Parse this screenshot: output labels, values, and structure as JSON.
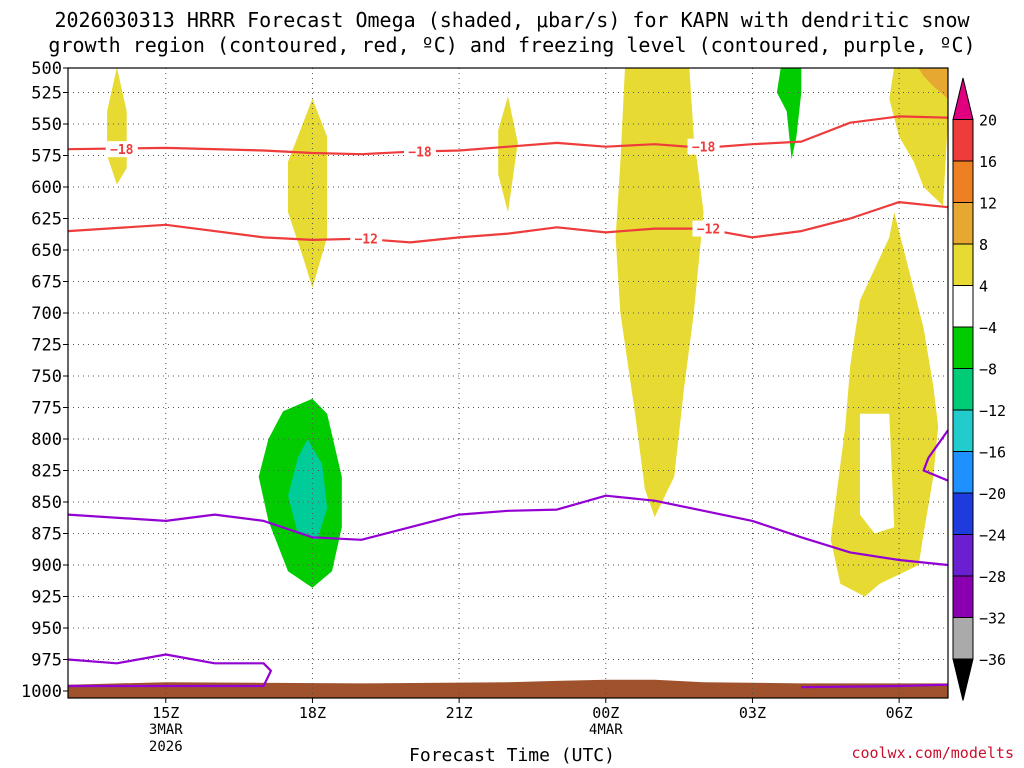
{
  "chart_data": {
    "type": "contour",
    "title_line1": "2026030313 HRRR Forecast Omega (shaded, μbar/s) for KAPN with dendritic snow",
    "title_line2": "growth region (contoured, red, ºC) and freezing level (contoured, purple, ºC)",
    "xlabel": "Forecast Time (UTC)",
    "ylabel": "",
    "credit": "coolwx.com/modelts",
    "x_hours_range": [
      13,
      31
    ],
    "y_range_mb": [
      500,
      1000
    ],
    "yticks": [
      500,
      525,
      550,
      575,
      600,
      625,
      650,
      675,
      700,
      725,
      750,
      775,
      800,
      825,
      850,
      875,
      900,
      925,
      950,
      975,
      1000
    ],
    "xticks": [
      {
        "hour": 15,
        "label": "15Z",
        "sub1": "3MAR",
        "sub2": "2026"
      },
      {
        "hour": 18,
        "label": "18Z",
        "sub1": "",
        "sub2": ""
      },
      {
        "hour": 21,
        "label": "21Z",
        "sub1": "",
        "sub2": ""
      },
      {
        "hour": 24,
        "label": "00Z",
        "sub1": "4MAR",
        "sub2": ""
      },
      {
        "hour": 27,
        "label": "03Z",
        "sub1": "",
        "sub2": ""
      },
      {
        "hour": 30,
        "label": "06Z",
        "sub1": "",
        "sub2": ""
      }
    ],
    "colorbar": {
      "levels": [
        {
          "label": "",
          "color": "#e0007f"
        },
        {
          "label": "20",
          "color": "#ee3b3b"
        },
        {
          "label": "16",
          "color": "#ee7f22"
        },
        {
          "label": "12",
          "color": "#e6a830"
        },
        {
          "label": "8",
          "color": "#e6da33"
        },
        {
          "label": "4",
          "color": "#ffffff"
        },
        {
          "label": "−4",
          "color": "#00cc00"
        },
        {
          "label": "−8",
          "color": "#00cc77"
        },
        {
          "label": "−12",
          "color": "#22cccc"
        },
        {
          "label": "−16",
          "color": "#1e90ff"
        },
        {
          "label": "−20",
          "color": "#1e3cdd"
        },
        {
          "label": "−24",
          "color": "#6a1fd0"
        },
        {
          "label": "−28",
          "color": "#8a00b0"
        },
        {
          "label": "−32",
          "color": "#aaaaaa"
        },
        {
          "label": "−36",
          "color": "#000000"
        }
      ]
    },
    "omega_regions": [
      {
        "name": "yellow-15z",
        "color": "#e6da33",
        "points": [
          [
            14.0,
            505
          ],
          [
            14.2,
            540
          ],
          [
            14.2,
            585
          ],
          [
            14.0,
            598
          ],
          [
            13.8,
            575
          ],
          [
            13.8,
            540
          ]
        ]
      },
      {
        "name": "yellow-18z",
        "color": "#e6da33",
        "points": [
          [
            18.0,
            530
          ],
          [
            18.3,
            560
          ],
          [
            18.3,
            640
          ],
          [
            18.0,
            680
          ],
          [
            17.8,
            655
          ],
          [
            17.5,
            620
          ],
          [
            17.5,
            580
          ],
          [
            17.8,
            550
          ]
        ]
      },
      {
        "name": "yellow-22z",
        "color": "#e6da33",
        "points": [
          [
            22.0,
            528
          ],
          [
            22.2,
            565
          ],
          [
            22.0,
            620
          ],
          [
            21.8,
            590
          ],
          [
            21.8,
            555
          ]
        ]
      },
      {
        "name": "yellow-01z",
        "color": "#e6da33",
        "points": [
          [
            24.4,
            500
          ],
          [
            25.7,
            500
          ],
          [
            25.8,
            560
          ],
          [
            26.0,
            620
          ],
          [
            25.8,
            700
          ],
          [
            25.6,
            760
          ],
          [
            25.4,
            830
          ],
          [
            25.0,
            862
          ],
          [
            24.8,
            840
          ],
          [
            24.6,
            780
          ],
          [
            24.3,
            700
          ],
          [
            24.2,
            640
          ],
          [
            24.3,
            580
          ]
        ]
      },
      {
        "name": "yellow-05z",
        "color": "#e6da33",
        "points": [
          [
            29.9,
            505
          ],
          [
            29.8,
            530
          ],
          [
            30.0,
            560
          ],
          [
            30.3,
            580
          ],
          [
            30.5,
            600
          ],
          [
            30.9,
            615
          ],
          [
            31.0,
            545
          ],
          [
            31.0,
            500
          ],
          [
            30.6,
            500
          ]
        ]
      },
      {
        "name": "yellow-06z-low",
        "color": "#e6da33",
        "points": [
          [
            29.9,
            620
          ],
          [
            30.5,
            712
          ],
          [
            30.7,
            758
          ],
          [
            30.8,
            790
          ],
          [
            30.7,
            830
          ],
          [
            30.5,
            875
          ],
          [
            30.4,
            900
          ],
          [
            29.6,
            915
          ],
          [
            29.3,
            925
          ],
          [
            28.8,
            915
          ],
          [
            28.6,
            880
          ],
          [
            28.9,
            790
          ],
          [
            29.0,
            742
          ],
          [
            29.2,
            690
          ],
          [
            29.8,
            640
          ]
        ]
      },
      {
        "name": "orange-top",
        "color": "#e6a830",
        "points": [
          [
            30.3,
            500
          ],
          [
            31.0,
            500
          ],
          [
            31.0,
            530
          ],
          [
            30.7,
            520
          ],
          [
            30.5,
            512
          ]
        ]
      },
      {
        "name": "green-04z",
        "color": "#00cc00",
        "points": [
          [
            27.6,
            500
          ],
          [
            28.0,
            500
          ],
          [
            28.0,
            525
          ],
          [
            27.9,
            560
          ],
          [
            27.8,
            578
          ],
          [
            27.7,
            540
          ],
          [
            27.5,
            525
          ]
        ]
      },
      {
        "name": "green-18z",
        "color": "#00cc00",
        "points": [
          [
            18.0,
            768
          ],
          [
            18.3,
            780
          ],
          [
            18.6,
            830
          ],
          [
            18.6,
            870
          ],
          [
            18.4,
            905
          ],
          [
            18.0,
            918
          ],
          [
            17.5,
            905
          ],
          [
            17.1,
            865
          ],
          [
            16.9,
            830
          ],
          [
            17.1,
            800
          ],
          [
            17.4,
            778
          ]
        ]
      },
      {
        "name": "teal-18z",
        "color": "#00cc99",
        "points": [
          [
            17.9,
            800
          ],
          [
            18.2,
            820
          ],
          [
            18.3,
            855
          ],
          [
            18.1,
            880
          ],
          [
            17.7,
            875
          ],
          [
            17.5,
            845
          ],
          [
            17.7,
            815
          ]
        ]
      }
    ],
    "omega_holes": [
      {
        "name": "white-05z",
        "points": [
          [
            29.2,
            780
          ],
          [
            29.8,
            780
          ],
          [
            29.9,
            870
          ],
          [
            29.5,
            875
          ],
          [
            29.2,
            860
          ]
        ]
      }
    ],
    "series": [
      {
        "name": "DGZ -18C",
        "color": "#ee3b3b",
        "label": "−18",
        "points": [
          [
            13,
            570
          ],
          [
            15,
            569
          ],
          [
            17,
            571
          ],
          [
            18,
            573
          ],
          [
            19,
            574
          ],
          [
            20,
            572
          ],
          [
            21,
            571
          ],
          [
            22,
            568
          ],
          [
            23,
            565
          ],
          [
            24,
            568
          ],
          [
            25,
            566
          ],
          [
            26,
            569
          ],
          [
            27,
            566
          ],
          [
            28,
            564
          ],
          [
            29,
            549
          ],
          [
            30,
            544
          ],
          [
            31,
            545
          ]
        ],
        "labels_at": [
          [
            14.1,
            570
          ],
          [
            20.2,
            572
          ],
          [
            26.0,
            568
          ]
        ]
      },
      {
        "name": "DGZ -12C",
        "color": "#ee3b3b",
        "label": "−12",
        "points": [
          [
            13,
            635
          ],
          [
            15,
            630
          ],
          [
            17,
            640
          ],
          [
            18,
            642
          ],
          [
            19,
            641
          ],
          [
            20,
            644
          ],
          [
            21,
            640
          ],
          [
            22,
            637
          ],
          [
            23,
            632
          ],
          [
            24,
            636
          ],
          [
            25,
            633
          ],
          [
            26,
            633
          ],
          [
            27,
            640
          ],
          [
            28,
            635
          ],
          [
            29,
            625
          ],
          [
            30,
            612
          ],
          [
            31,
            616
          ]
        ],
        "labels_at": [
          [
            19.1,
            641
          ],
          [
            26.1,
            633
          ]
        ]
      },
      {
        "name": "freezing-level-upper",
        "color": "#9400d3",
        "label": "",
        "points": [
          [
            13,
            860
          ],
          [
            15,
            865
          ],
          [
            16,
            860
          ],
          [
            17,
            865
          ],
          [
            18,
            878
          ],
          [
            19,
            880
          ],
          [
            20,
            870
          ],
          [
            21,
            860
          ],
          [
            22,
            857
          ],
          [
            23,
            856
          ],
          [
            24,
            845
          ],
          [
            25,
            849
          ],
          [
            26,
            857
          ],
          [
            27,
            865
          ],
          [
            28,
            878
          ],
          [
            29,
            890
          ],
          [
            30,
            896
          ],
          [
            31,
            900
          ]
        ],
        "labels_at": []
      },
      {
        "name": "freezing-level-sfc",
        "color": "#9400d3",
        "label": "",
        "points": [
          [
            13,
            975
          ],
          [
            14,
            978
          ],
          [
            15,
            971
          ],
          [
            16,
            978
          ],
          [
            17,
            978
          ],
          [
            17.15,
            984
          ],
          [
            17.0,
            996
          ],
          [
            15,
            996
          ],
          [
            13,
            996
          ]
        ],
        "labels_at": []
      },
      {
        "name": "freezing-level-sfc-right",
        "color": "#9400d3",
        "label": "",
        "points": [
          [
            28.0,
            997
          ],
          [
            30,
            996
          ],
          [
            31,
            995
          ]
        ],
        "labels_at": []
      },
      {
        "name": "freezing-level-edge",
        "color": "#9400d3",
        "label": "",
        "points": [
          [
            31.0,
            793
          ],
          [
            30.6,
            815
          ],
          [
            30.5,
            825
          ],
          [
            31.0,
            833
          ]
        ],
        "labels_at": []
      }
    ],
    "terrain": {
      "color": "#a0522d",
      "points": [
        [
          13,
          995
        ],
        [
          15,
          993
        ],
        [
          19,
          994
        ],
        [
          22,
          993
        ],
        [
          23,
          992
        ],
        [
          24,
          991
        ],
        [
          25,
          991
        ],
        [
          26,
          993
        ],
        [
          28,
          994
        ],
        [
          31,
          994
        ]
      ]
    }
  }
}
